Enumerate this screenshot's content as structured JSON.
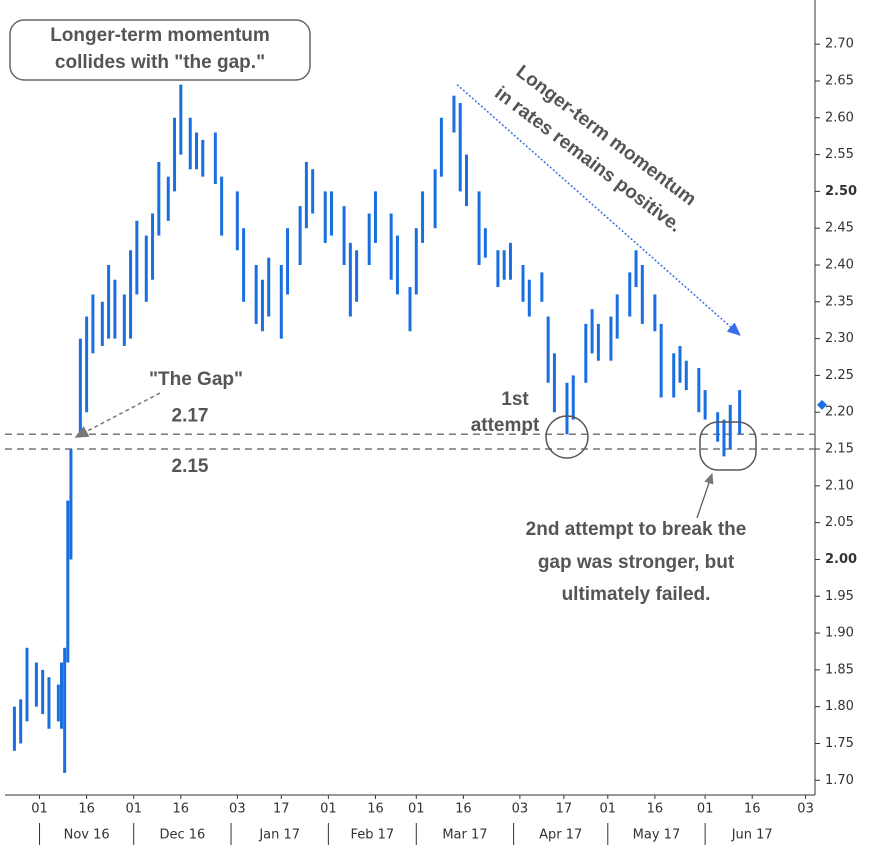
{
  "chart_data": {
    "type": "range_bar",
    "color": "#1a6fe0",
    "x": [
      "2016-10-24",
      "2016-10-26",
      "2016-10-28",
      "2016-10-31",
      "2016-11-02",
      "2016-11-04",
      "2016-11-07",
      "2016-11-08",
      "2016-11-09",
      "2016-11-10",
      "2016-11-11",
      "2016-11-14",
      "2016-11-16",
      "2016-11-18",
      "2016-11-21",
      "2016-11-23",
      "2016-11-25",
      "2016-11-28",
      "2016-11-30",
      "2016-12-02",
      "2016-12-05",
      "2016-12-07",
      "2016-12-09",
      "2016-12-12",
      "2016-12-14",
      "2016-12-16",
      "2016-12-19",
      "2016-12-21",
      "2016-12-23",
      "2016-12-27",
      "2016-12-29",
      "2017-01-03",
      "2017-01-05",
      "2017-01-09",
      "2017-01-11",
      "2017-01-13",
      "2017-01-17",
      "2017-01-19",
      "2017-01-23",
      "2017-01-25",
      "2017-01-27",
      "2017-01-31",
      "2017-02-02",
      "2017-02-06",
      "2017-02-08",
      "2017-02-10",
      "2017-02-14",
      "2017-02-16",
      "2017-02-21",
      "2017-02-23",
      "2017-02-27",
      "2017-03-01",
      "2017-03-03",
      "2017-03-07",
      "2017-03-09",
      "2017-03-13",
      "2017-03-15",
      "2017-03-17",
      "2017-03-21",
      "2017-03-23",
      "2017-03-27",
      "2017-03-29",
      "2017-03-31",
      "2017-04-04",
      "2017-04-06",
      "2017-04-10",
      "2017-04-12",
      "2017-04-14",
      "2017-04-18",
      "2017-04-20",
      "2017-04-24",
      "2017-04-26",
      "2017-04-28",
      "2017-05-02",
      "2017-05-04",
      "2017-05-08",
      "2017-05-10",
      "2017-05-12",
      "2017-05-16",
      "2017-05-18",
      "2017-05-22",
      "2017-05-24",
      "2017-05-26",
      "2017-05-30",
      "2017-06-01",
      "2017-06-05",
      "2017-06-07",
      "2017-06-09",
      "2017-06-12"
    ],
    "low": [
      1.74,
      1.75,
      1.78,
      1.8,
      1.79,
      1.77,
      1.78,
      1.77,
      1.71,
      1.86,
      2.0,
      2.17,
      2.2,
      2.28,
      2.29,
      2.3,
      2.3,
      2.29,
      2.3,
      2.36,
      2.35,
      2.38,
      2.44,
      2.46,
      2.5,
      2.55,
      2.53,
      2.53,
      2.52,
      2.51,
      2.44,
      2.42,
      2.35,
      2.32,
      2.31,
      2.33,
      2.3,
      2.36,
      2.4,
      2.45,
      2.47,
      2.43,
      2.44,
      2.4,
      2.33,
      2.35,
      2.4,
      2.43,
      2.38,
      2.36,
      2.31,
      2.36,
      2.43,
      2.45,
      2.52,
      2.58,
      2.5,
      2.48,
      2.4,
      2.41,
      2.37,
      2.38,
      2.38,
      2.35,
      2.33,
      2.35,
      2.24,
      2.2,
      2.17,
      2.19,
      2.24,
      2.28,
      2.27,
      2.27,
      2.3,
      2.33,
      2.37,
      2.32,
      2.31,
      2.22,
      2.22,
      2.24,
      2.23,
      2.2,
      2.19,
      2.16,
      2.14,
      2.15,
      2.17
    ],
    "high": [
      1.8,
      1.81,
      1.88,
      1.86,
      1.85,
      1.84,
      1.83,
      1.86,
      1.88,
      2.08,
      2.15,
      2.3,
      2.33,
      2.36,
      2.35,
      2.4,
      2.38,
      2.36,
      2.42,
      2.46,
      2.44,
      2.47,
      2.54,
      2.52,
      2.6,
      2.645,
      2.6,
      2.58,
      2.57,
      2.58,
      2.52,
      2.5,
      2.45,
      2.4,
      2.38,
      2.41,
      2.4,
      2.45,
      2.48,
      2.54,
      2.53,
      2.5,
      2.5,
      2.48,
      2.43,
      2.42,
      2.47,
      2.5,
      2.47,
      2.44,
      2.37,
      2.45,
      2.5,
      2.53,
      2.6,
      2.63,
      2.62,
      2.55,
      2.5,
      2.45,
      2.42,
      2.42,
      2.43,
      2.4,
      2.38,
      2.39,
      2.33,
      2.28,
      2.24,
      2.25,
      2.32,
      2.34,
      2.32,
      2.33,
      2.36,
      2.39,
      2.42,
      2.4,
      2.36,
      2.32,
      2.28,
      2.29,
      2.27,
      2.26,
      2.23,
      2.2,
      2.19,
      2.21,
      2.23
    ],
    "xlim": [
      "2016-10-21",
      "2017-07-06"
    ],
    "xticks": [
      {
        "value": "2016-11-01",
        "label": "01"
      },
      {
        "value": "2016-11-16",
        "label": "16"
      },
      {
        "value": "2016-12-01",
        "label": "01"
      },
      {
        "value": "2016-12-16",
        "label": "16"
      },
      {
        "value": "2017-01-03",
        "label": "03"
      },
      {
        "value": "2017-01-17",
        "label": "17"
      },
      {
        "value": "2017-02-01",
        "label": "01"
      },
      {
        "value": "2017-02-16",
        "label": "16"
      },
      {
        "value": "2017-03-01",
        "label": "01"
      },
      {
        "value": "2017-03-16",
        "label": "16"
      },
      {
        "value": "2017-04-03",
        "label": "03"
      },
      {
        "value": "2017-04-17",
        "label": "17"
      },
      {
        "value": "2017-05-01",
        "label": "01"
      },
      {
        "value": "2017-05-16",
        "label": "16"
      },
      {
        "value": "2017-06-01",
        "label": "01"
      },
      {
        "value": "2017-06-16",
        "label": "16"
      },
      {
        "value": "2017-07-03",
        "label": "03"
      }
    ],
    "months": [
      {
        "value": "2016-11",
        "label": "Nov 16"
      },
      {
        "value": "2016-12",
        "label": "Dec 16"
      },
      {
        "value": "2017-01",
        "label": "Jan 17"
      },
      {
        "value": "2017-02",
        "label": "Feb 17"
      },
      {
        "value": "2017-03",
        "label": "Mar 17"
      },
      {
        "value": "2017-04",
        "label": "Apr 17"
      },
      {
        "value": "2017-05",
        "label": "May 17"
      },
      {
        "value": "2017-06",
        "label": "Jun 17"
      }
    ],
    "ylim": [
      1.68,
      2.76
    ],
    "yticks": [
      {
        "value": 1.7,
        "label": "1.70"
      },
      1.75,
      {
        "value": 1.8,
        "label": "1.80"
      },
      1.85,
      {
        "value": 1.9,
        "label": "1.90"
      },
      1.95,
      {
        "value": 2,
        "label": "2.00"
      },
      2.05,
      {
        "value": 2.1,
        "label": "2.10"
      },
      2.15,
      {
        "value": 2.2,
        "label": "2.20"
      },
      2.25,
      {
        "value": 2.3,
        "label": "2.30"
      },
      2.35,
      {
        "value": 2.4,
        "label": "2.40"
      },
      2.45,
      {
        "value": 2.5,
        "label": "2.50"
      },
      2.55,
      {
        "value": 2.6,
        "label": "2.60"
      },
      2.65,
      {
        "value": 2.7,
        "label": "2.70"
      }
    ],
    "hlines": [
      2.17,
      2.15
    ],
    "current_marker": 2.21,
    "trendline": {
      "x": [
        "2017-03-14",
        "2017-06-12"
      ],
      "y": [
        2.645,
        2.305
      ]
    },
    "annotations": {
      "box": [
        "Longer-term momentum",
        "collides with \"the gap.\""
      ],
      "trend": [
        "Longer-term momentum",
        "in rates remains positive."
      ],
      "gap": "\"The Gap\"",
      "first": [
        "1st",
        "attempt"
      ],
      "second": [
        "2nd attempt to break the",
        "gap was stronger, but",
        "ultimately failed."
      ]
    }
  }
}
